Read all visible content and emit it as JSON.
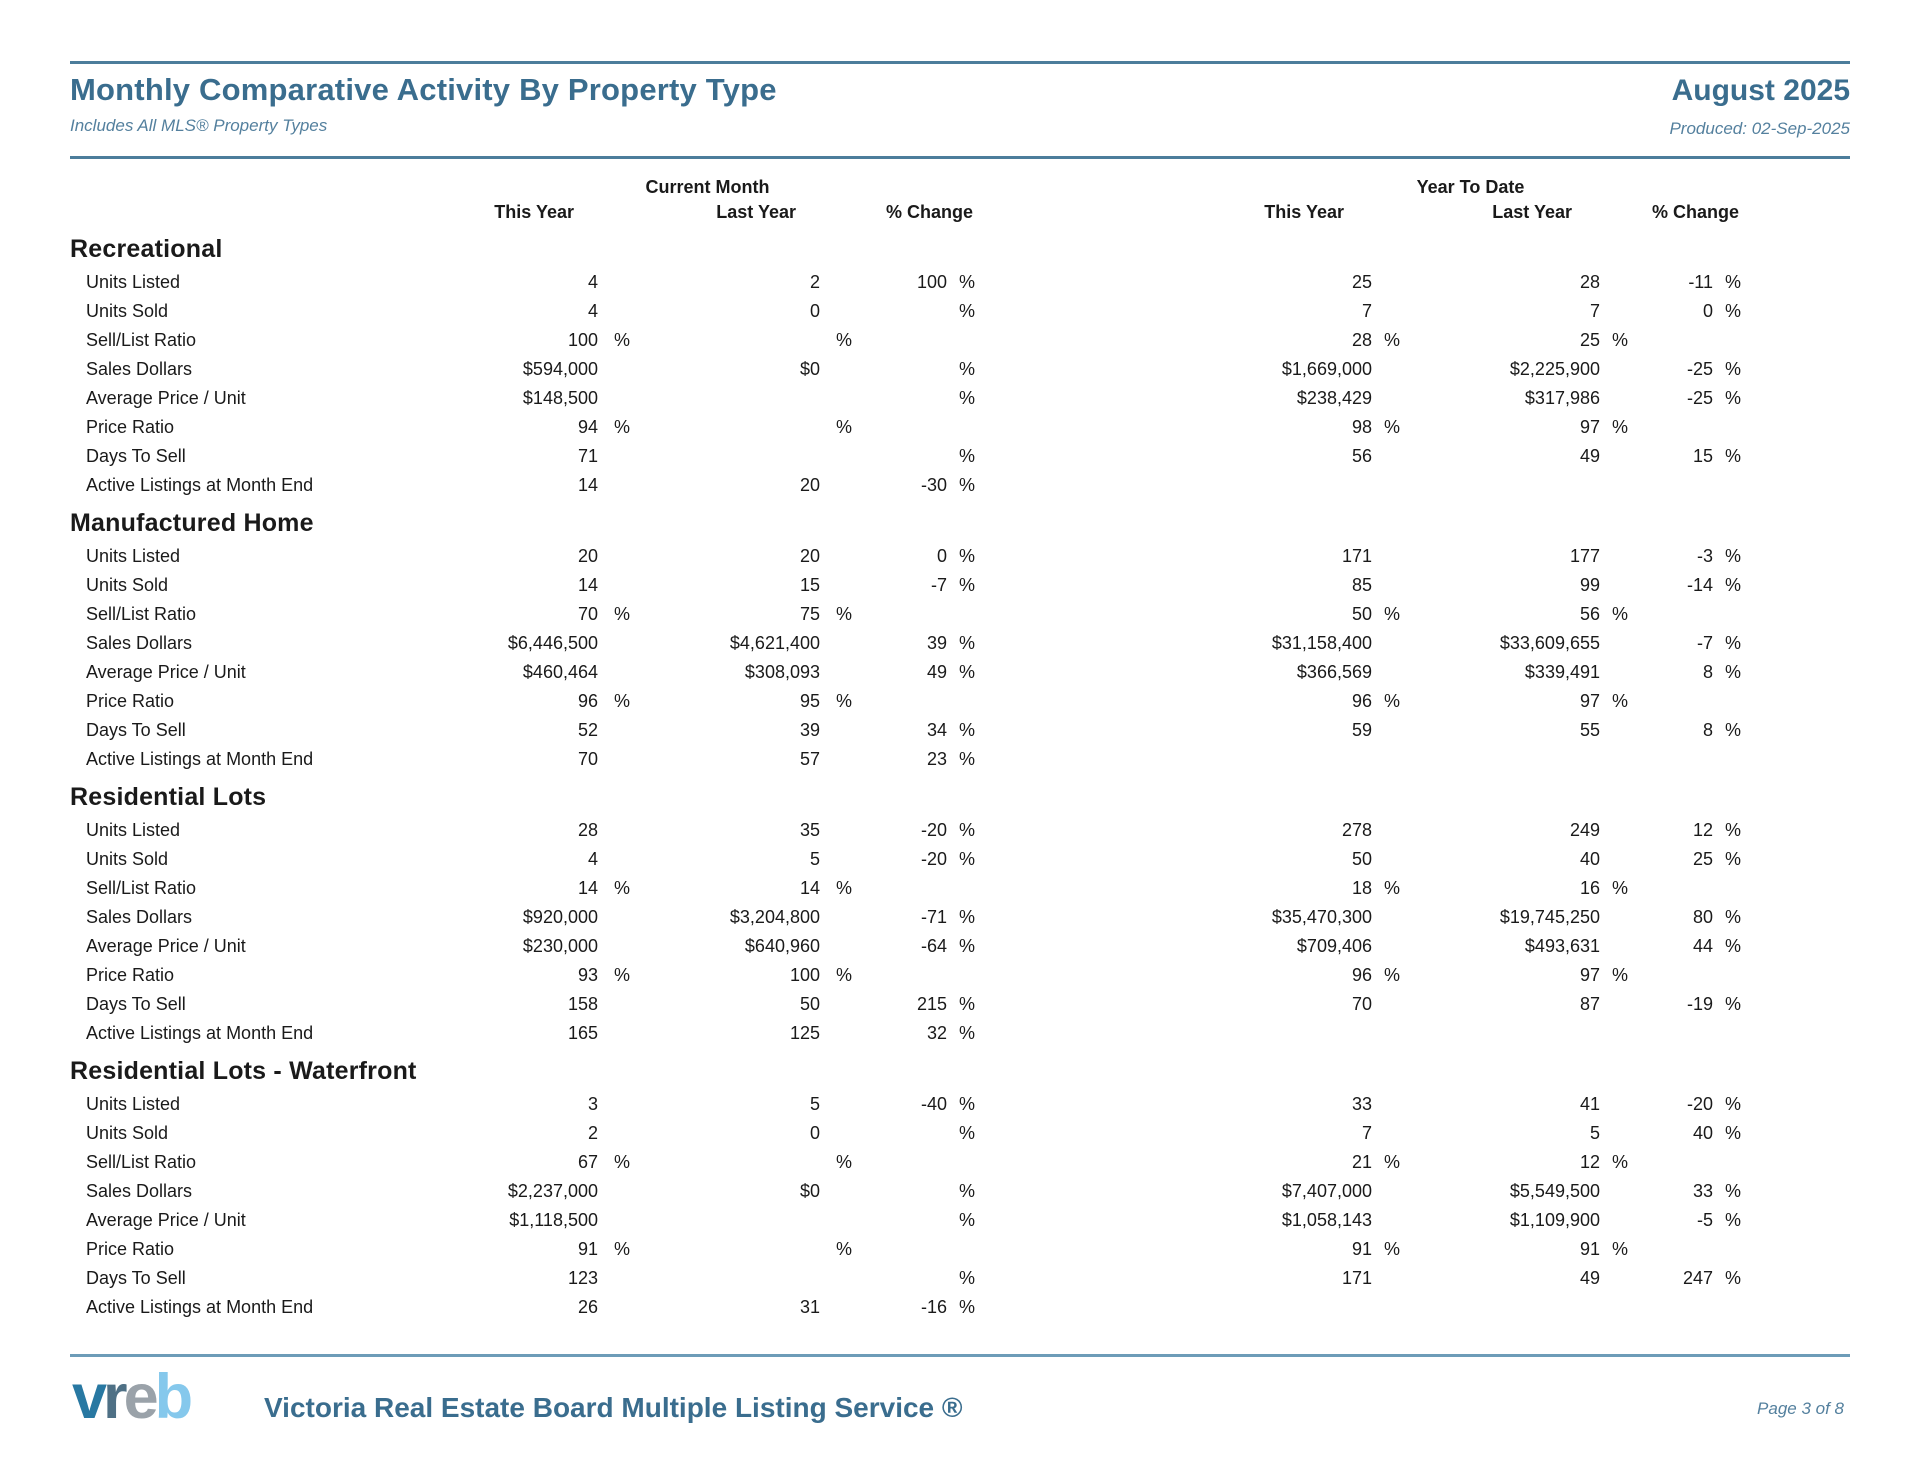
{
  "colors": {
    "heading": "#3a6d8e",
    "heading_soft": "#54809e",
    "rule": "#4c7d9b",
    "rule_light": "#6d9cb8",
    "body_text": "#1a1a1a"
  },
  "report": {
    "title": "Monthly Comparative Activity By Property Type",
    "subtitle": "Includes All MLS® Property Types",
    "period": "August 2025",
    "produced": "Produced: 02-Sep-2025"
  },
  "table": {
    "group_headers": [
      "Current Month",
      "Year To Date"
    ],
    "column_headers": [
      "This Year",
      "Last Year",
      "% Change",
      "This Year",
      "Last Year",
      "% Change"
    ],
    "column_keys": [
      "cm-this-year",
      "cm-last-year",
      "cm-pct-change",
      "ytd-this-year",
      "ytd-last-year",
      "ytd-pct-change"
    ],
    "sections": [
      {
        "name": "Recreational",
        "rows": [
          {
            "label": "Units Listed",
            "cells": [
              "4",
              "2",
              "100 %",
              "25",
              "28",
              "-11 %"
            ]
          },
          {
            "label": "Units Sold",
            "cells": [
              "4",
              "0",
              "%",
              "7",
              "7",
              "0 %"
            ]
          },
          {
            "label": "Sell/List Ratio",
            "cells": [
              "100 %",
              "%",
              "",
              "28 %",
              "25 %",
              ""
            ]
          },
          {
            "label": "Sales Dollars",
            "cells": [
              "$594,000",
              "$0",
              "%",
              "$1,669,000",
              "$2,225,900",
              "-25 %"
            ]
          },
          {
            "label": "Average Price / Unit",
            "cells": [
              "$148,500",
              "",
              "%",
              "$238,429",
              "$317,986",
              "-25 %"
            ]
          },
          {
            "label": "Price Ratio",
            "cells": [
              "94 %",
              "%",
              "",
              "98 %",
              "97 %",
              ""
            ]
          },
          {
            "label": "Days To Sell",
            "cells": [
              "71",
              "",
              "%",
              "56",
              "49",
              "15 %"
            ]
          },
          {
            "label": "Active Listings at Month End",
            "cells": [
              "14",
              "20",
              "-30 %",
              "",
              "",
              ""
            ]
          }
        ]
      },
      {
        "name": "Manufactured Home",
        "rows": [
          {
            "label": "Units Listed",
            "cells": [
              "20",
              "20",
              "0 %",
              "171",
              "177",
              "-3 %"
            ]
          },
          {
            "label": "Units Sold",
            "cells": [
              "14",
              "15",
              "-7 %",
              "85",
              "99",
              "-14 %"
            ]
          },
          {
            "label": "Sell/List Ratio",
            "cells": [
              "70 %",
              "75 %",
              "",
              "50 %",
              "56 %",
              ""
            ]
          },
          {
            "label": "Sales Dollars",
            "cells": [
              "$6,446,500",
              "$4,621,400",
              "39 %",
              "$31,158,400",
              "$33,609,655",
              "-7 %"
            ]
          },
          {
            "label": "Average Price / Unit",
            "cells": [
              "$460,464",
              "$308,093",
              "49 %",
              "$366,569",
              "$339,491",
              "8 %"
            ]
          },
          {
            "label": "Price Ratio",
            "cells": [
              "96 %",
              "95 %",
              "",
              "96 %",
              "97 %",
              ""
            ]
          },
          {
            "label": "Days To Sell",
            "cells": [
              "52",
              "39",
              "34 %",
              "59",
              "55",
              "8 %"
            ]
          },
          {
            "label": "Active Listings at Month End",
            "cells": [
              "70",
              "57",
              "23 %",
              "",
              "",
              ""
            ]
          }
        ]
      },
      {
        "name": "Residential Lots",
        "rows": [
          {
            "label": "Units Listed",
            "cells": [
              "28",
              "35",
              "-20 %",
              "278",
              "249",
              "12 %"
            ]
          },
          {
            "label": "Units Sold",
            "cells": [
              "4",
              "5",
              "-20 %",
              "50",
              "40",
              "25 %"
            ]
          },
          {
            "label": "Sell/List Ratio",
            "cells": [
              "14 %",
              "14 %",
              "",
              "18 %",
              "16 %",
              ""
            ]
          },
          {
            "label": "Sales Dollars",
            "cells": [
              "$920,000",
              "$3,204,800",
              "-71 %",
              "$35,470,300",
              "$19,745,250",
              "80 %"
            ]
          },
          {
            "label": "Average Price / Unit",
            "cells": [
              "$230,000",
              "$640,960",
              "-64 %",
              "$709,406",
              "$493,631",
              "44 %"
            ]
          },
          {
            "label": "Price Ratio",
            "cells": [
              "93 %",
              "100 %",
              "",
              "96 %",
              "97 %",
              ""
            ]
          },
          {
            "label": "Days To Sell",
            "cells": [
              "158",
              "50",
              "215 %",
              "70",
              "87",
              "-19 %"
            ]
          },
          {
            "label": "Active Listings at Month End",
            "cells": [
              "165",
              "125",
              "32 %",
              "",
              "",
              ""
            ]
          }
        ]
      },
      {
        "name": "Residential Lots - Waterfront",
        "rows": [
          {
            "label": "Units Listed",
            "cells": [
              "3",
              "5",
              "-40 %",
              "33",
              "41",
              "-20 %"
            ]
          },
          {
            "label": "Units Sold",
            "cells": [
              "2",
              "0",
              "%",
              "7",
              "5",
              "40 %"
            ]
          },
          {
            "label": "Sell/List Ratio",
            "cells": [
              "67 %",
              "%",
              "",
              "21 %",
              "12 %",
              ""
            ]
          },
          {
            "label": "Sales Dollars",
            "cells": [
              "$2,237,000",
              "$0",
              "%",
              "$7,407,000",
              "$5,549,500",
              "33 %"
            ]
          },
          {
            "label": "Average Price / Unit",
            "cells": [
              "$1,118,500",
              "",
              "%",
              "$1,058,143",
              "$1,109,900",
              "-5 %"
            ]
          },
          {
            "label": "Price Ratio",
            "cells": [
              "91 %",
              "%",
              "",
              "91 %",
              "91 %",
              ""
            ]
          },
          {
            "label": "Days To Sell",
            "cells": [
              "123",
              "",
              "%",
              "171",
              "49",
              "247 %"
            ]
          },
          {
            "label": "Active Listings at Month End",
            "cells": [
              "26",
              "31",
              "-16 %",
              "",
              "",
              ""
            ]
          }
        ]
      }
    ]
  },
  "footer": {
    "logo": {
      "letters": [
        {
          "ch": "v",
          "color": "#2878a2"
        },
        {
          "ch": "r",
          "color": "#4e7085"
        },
        {
          "ch": "e",
          "color": "#9aa2a9"
        },
        {
          "ch": "b",
          "color": "#85c8ec"
        }
      ]
    },
    "brand": "Victoria Real Estate Board Multiple Listing Service ®",
    "page": "Page 3 of 8"
  }
}
